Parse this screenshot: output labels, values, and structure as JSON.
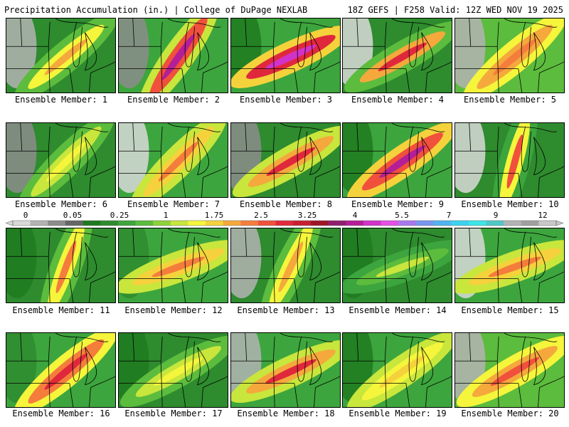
{
  "header": {
    "left": "Precipitation Accumulation (in.) | College of DuPage NEXLAB",
    "right": "18Z GEFS | F258 Valid: 12Z WED NOV 19 2025"
  },
  "colorbar": {
    "labels": [
      "0",
      "0.05",
      "0.25",
      "1",
      "1.75",
      "2.5",
      "3.25",
      "4",
      "5.5",
      "7",
      "9",
      "12"
    ],
    "colors": [
      "#d9d9d9",
      "#b3b3b3",
      "#8c8c8c",
      "#666666",
      "#1f7a1f",
      "#2e8b2e",
      "#3da53d",
      "#5cbc3d",
      "#8fd13a",
      "#c8e63c",
      "#f5f53c",
      "#f5d23c",
      "#f5a83c",
      "#f57d3c",
      "#f0503c",
      "#e0283c",
      "#c81e32",
      "#a01428",
      "#901e6e",
      "#b41e96",
      "#d232c8",
      "#e650e6",
      "#a878f0",
      "#7896f0",
      "#50b4f0",
      "#3cd2f0",
      "#3ce6e6",
      "#50c8c8",
      "#b4b4b4",
      "#a0a0a0",
      "#c8c8c8"
    ]
  },
  "members": [
    {
      "label": "Ensemble Member: 1"
    },
    {
      "label": "Ensemble Member: 2"
    },
    {
      "label": "Ensemble Member: 3"
    },
    {
      "label": "Ensemble Member: 4"
    },
    {
      "label": "Ensemble Member: 5"
    },
    {
      "label": "Ensemble Member: 6"
    },
    {
      "label": "Ensemble Member: 7"
    },
    {
      "label": "Ensemble Member: 8"
    },
    {
      "label": "Ensemble Member: 9"
    },
    {
      "label": "Ensemble Member: 10"
    },
    {
      "label": "Ensemble Member: 11"
    },
    {
      "label": "Ensemble Member: 12"
    },
    {
      "label": "Ensemble Member: 13"
    },
    {
      "label": "Ensemble Member: 14"
    },
    {
      "label": "Ensemble Member: 15"
    },
    {
      "label": "Ensemble Member: 16"
    },
    {
      "label": "Ensemble Member: 17"
    },
    {
      "label": "Ensemble Member: 18"
    },
    {
      "label": "Ensemble Member: 19"
    },
    {
      "label": "Ensemble Member: 20"
    }
  ]
}
